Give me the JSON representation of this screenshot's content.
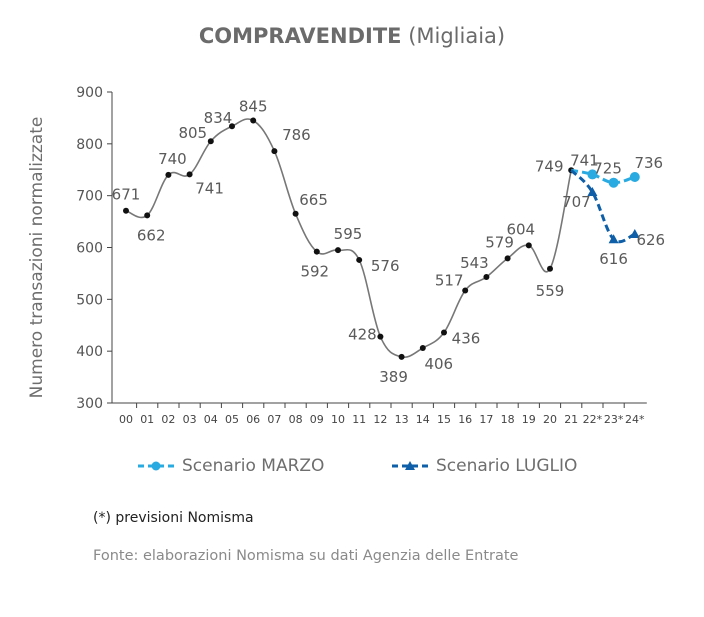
{
  "chart_data": {
    "type": "line",
    "title": "COMPRAVENDITE",
    "subtitle": "(Migliaia)",
    "ylabel": "Numero transazioni normalizzate",
    "xlabel": "",
    "ylim": [
      300,
      900
    ],
    "yticks": [
      300,
      400,
      500,
      600,
      700,
      800,
      900
    ],
    "categories": [
      "00",
      "01",
      "02",
      "03",
      "04",
      "05",
      "06",
      "07",
      "08",
      "09",
      "10",
      "11",
      "12",
      "13",
      "14",
      "15",
      "16",
      "17",
      "18",
      "19",
      "20",
      "21",
      "22*",
      "23*",
      "24*"
    ],
    "grid": false,
    "legend_position": "bottom",
    "series": [
      {
        "name": "",
        "color": "#777777",
        "values": [
          671,
          662,
          740,
          741,
          805,
          834,
          845,
          786,
          665,
          592,
          595,
          576,
          428,
          389,
          406,
          436,
          517,
          543,
          579,
          604,
          559,
          749,
          null,
          null,
          null
        ],
        "labels": [
          "671",
          "662",
          "740",
          "741",
          "805",
          "834",
          "845",
          "786",
          "665",
          "592",
          "",
          "576",
          "428",
          "389",
          "406",
          "436",
          "517",
          "543",
          "579",
          "604",
          "559",
          "749",
          "",
          "",
          ""
        ]
      },
      {
        "name": "Scenario MARZO",
        "color": "#29abe2",
        "style": "dashed",
        "values": [
          null,
          null,
          null,
          null,
          null,
          null,
          null,
          null,
          null,
          null,
          null,
          null,
          null,
          null,
          null,
          null,
          null,
          null,
          null,
          null,
          null,
          749,
          741,
          725,
          736
        ],
        "labels": [
          "",
          "",
          "",
          "",
          "",
          "",
          "",
          "",
          "",
          "",
          "",
          "",
          "",
          "",
          "",
          "",
          "",
          "",
          "",
          "",
          "",
          "",
          "741",
          "725",
          "736"
        ]
      },
      {
        "name": "Scenario LUGLIO",
        "color": "#0e5fa8",
        "style": "dashed",
        "values": [
          null,
          null,
          null,
          null,
          null,
          null,
          null,
          null,
          null,
          null,
          null,
          null,
          null,
          null,
          null,
          null,
          null,
          null,
          null,
          null,
          null,
          749,
          707,
          616,
          626
        ],
        "labels": [
          "",
          "",
          "",
          "",
          "",
          "",
          "",
          "",
          "",
          "",
          "",
          "",
          "",
          "",
          "",
          "",
          "",
          "",
          "",
          "",
          "",
          "",
          "707",
          "616",
          "626"
        ]
      }
    ],
    "annotations": [
      "595"
    ]
  },
  "footnote": "(*) previsioni Nomisma",
  "source": "Fonte: elaborazioni Nomisma su dati Agenzia delle Entrate"
}
